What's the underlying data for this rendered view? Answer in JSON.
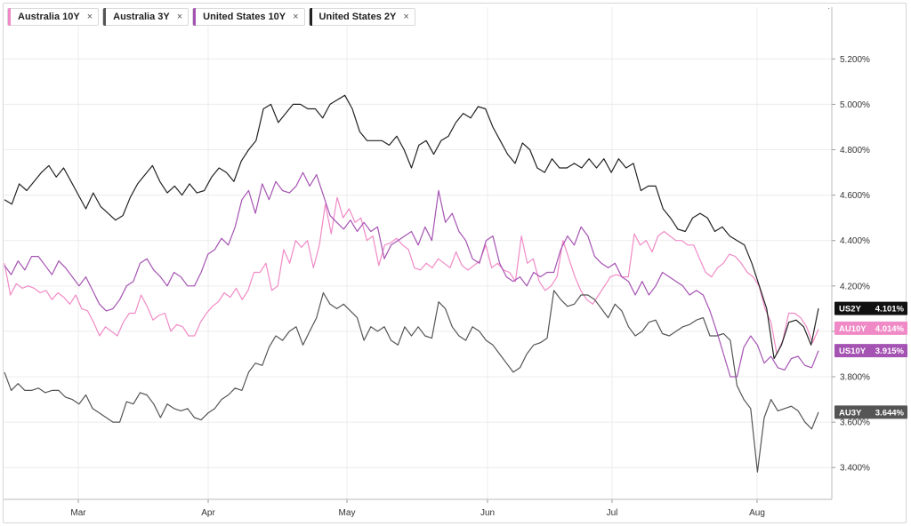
{
  "legend": [
    {
      "label": "Australia 10Y",
      "color": "#f08ac6",
      "close": "×"
    },
    {
      "label": "Australia 3Y",
      "color": "#555555",
      "close": "×"
    },
    {
      "label": "United States 10Y",
      "color": "#a553b2",
      "close": "×"
    },
    {
      "label": "United States 2Y",
      "color": "#222222",
      "close": "×"
    }
  ],
  "corner_mark": "·",
  "chart_data": {
    "type": "line",
    "x_labels": [
      "Mar",
      "Apr",
      "May",
      "Jun",
      "Jul",
      "Aug"
    ],
    "y_ticks": [
      "3.400%",
      "3.600%",
      "3.800%",
      "4.000%",
      "4.200%",
      "4.400%",
      "4.600%",
      "4.800%",
      "5.000%",
      "5.200%"
    ],
    "y_tick_values": [
      3.4,
      3.6,
      3.8,
      4.0,
      4.2,
      4.4,
      4.6,
      4.8,
      5.0,
      5.2
    ],
    "ylim": [
      3.26,
      5.35
    ],
    "grid": true,
    "legend_position": "top-left",
    "series": [
      {
        "name": "Australia 10Y",
        "badge": "AU10Y",
        "last_label": "4.014%",
        "color": "#f08ac6",
        "badge_color": "#f08ac6",
        "last": 4.014,
        "values": [
          4.3,
          4.16,
          4.21,
          4.19,
          4.2,
          4.19,
          4.17,
          4.18,
          4.14,
          4.17,
          4.15,
          4.12,
          4.16,
          4.1,
          4.09,
          4.04,
          3.98,
          4.02,
          4.0,
          3.98,
          4.04,
          4.08,
          4.08,
          4.16,
          4.11,
          4.05,
          4.07,
          4.08,
          4.0,
          4.03,
          4.02,
          3.98,
          3.98,
          4.04,
          4.08,
          4.11,
          4.13,
          4.17,
          4.15,
          4.19,
          4.14,
          4.18,
          4.26,
          4.26,
          4.3,
          4.18,
          4.2,
          4.36,
          4.3,
          4.4,
          4.37,
          4.4,
          4.28,
          4.38,
          4.56,
          4.43,
          4.59,
          4.5,
          4.54,
          4.48,
          4.5,
          4.4,
          4.42,
          4.29,
          4.38,
          4.39,
          4.41,
          4.38,
          4.36,
          4.28,
          4.27,
          4.3,
          4.28,
          4.32,
          4.3,
          4.28,
          4.35,
          4.29,
          4.27,
          4.29,
          4.31,
          4.38,
          4.28,
          4.3,
          4.27,
          4.26,
          4.22,
          4.42,
          4.3,
          4.32,
          4.22,
          4.18,
          4.2,
          4.24,
          4.4,
          4.32,
          4.24,
          4.18,
          4.14,
          4.12,
          4.16,
          4.2,
          4.24,
          4.25,
          4.24,
          4.24,
          4.43,
          4.38,
          4.4,
          4.35,
          4.42,
          4.44,
          4.42,
          4.4,
          4.4,
          4.38,
          4.38,
          4.32,
          4.26,
          4.24,
          4.28,
          4.3,
          4.34,
          4.33,
          4.3,
          4.26,
          4.24,
          4.2,
          4.1,
          4.04,
          3.9,
          3.96,
          4.08,
          4.08,
          4.06,
          4.02,
          3.95,
          4.01
        ]
      },
      {
        "name": "Australia 3Y",
        "badge": "AU3Y",
        "last_label": "3.644%",
        "color": "#555555",
        "badge_color": "#555555",
        "last": 3.644,
        "values": [
          3.82,
          3.74,
          3.77,
          3.74,
          3.74,
          3.75,
          3.73,
          3.74,
          3.74,
          3.71,
          3.7,
          3.68,
          3.72,
          3.66,
          3.64,
          3.62,
          3.6,
          3.6,
          3.69,
          3.68,
          3.73,
          3.72,
          3.68,
          3.62,
          3.68,
          3.66,
          3.65,
          3.66,
          3.62,
          3.61,
          3.64,
          3.66,
          3.7,
          3.72,
          3.75,
          3.74,
          3.82,
          3.86,
          3.85,
          3.93,
          3.98,
          3.96,
          4.0,
          4.02,
          3.94,
          4.0,
          4.06,
          4.17,
          4.12,
          4.1,
          4.12,
          4.09,
          4.06,
          3.96,
          4.02,
          4.0,
          4.02,
          3.96,
          3.94,
          4.02,
          3.98,
          4.02,
          3.98,
          3.97,
          4.13,
          4.1,
          4.02,
          3.98,
          3.96,
          4.02,
          4.0,
          3.96,
          3.94,
          3.9,
          3.86,
          3.82,
          3.84,
          3.9,
          3.94,
          3.95,
          3.97,
          4.18,
          4.14,
          4.11,
          4.12,
          4.16,
          4.16,
          4.14,
          4.1,
          4.06,
          4.12,
          4.09,
          4.02,
          3.98,
          4.0,
          4.04,
          4.05,
          3.99,
          3.98,
          4.0,
          4.02,
          4.03,
          4.05,
          4.06,
          3.98,
          3.98,
          3.99,
          3.96,
          3.76,
          3.7,
          3.66,
          3.38,
          3.62,
          3.7,
          3.65,
          3.66,
          3.67,
          3.65,
          3.6,
          3.57,
          3.644
        ]
      },
      {
        "name": "United States 10Y",
        "badge": "US10Y",
        "last_label": "3.915%",
        "color": "#a553b2",
        "badge_color": "#a553b2",
        "last": 3.915,
        "values": [
          4.29,
          4.25,
          4.31,
          4.27,
          4.33,
          4.33,
          4.29,
          4.25,
          4.31,
          4.28,
          4.24,
          4.2,
          4.24,
          4.18,
          4.12,
          4.09,
          4.1,
          4.14,
          4.2,
          4.22,
          4.3,
          4.32,
          4.27,
          4.24,
          4.2,
          4.26,
          4.24,
          4.2,
          4.2,
          4.26,
          4.34,
          4.36,
          4.41,
          4.38,
          4.46,
          4.58,
          4.62,
          4.52,
          4.65,
          4.58,
          4.66,
          4.62,
          4.61,
          4.64,
          4.7,
          4.64,
          4.69,
          4.6,
          4.51,
          4.48,
          4.45,
          4.49,
          4.44,
          4.48,
          4.44,
          4.46,
          4.32,
          4.38,
          4.4,
          4.42,
          4.44,
          4.38,
          4.46,
          4.4,
          4.62,
          4.48,
          4.52,
          4.44,
          4.4,
          4.32,
          4.3,
          4.4,
          4.42,
          4.3,
          4.24,
          4.22,
          4.24,
          4.2,
          4.26,
          4.24,
          4.26,
          4.26,
          4.36,
          4.42,
          4.38,
          4.46,
          4.42,
          4.33,
          4.3,
          4.28,
          4.3,
          4.24,
          4.22,
          4.16,
          4.22,
          4.16,
          4.2,
          4.26,
          4.24,
          4.22,
          4.2,
          4.16,
          4.18,
          4.16,
          4.09,
          4.0,
          3.9,
          3.8,
          3.8,
          3.93,
          3.98,
          3.94,
          3.86,
          3.89,
          3.84,
          3.83,
          3.88,
          3.89,
          3.85,
          3.84,
          3.915
        ]
      },
      {
        "name": "United States 2Y",
        "badge": "US2Y",
        "last_label": "4.101%",
        "color": "#222222",
        "badge_color": "#111111",
        "last": 4.101,
        "values": [
          4.58,
          4.56,
          4.65,
          4.62,
          4.66,
          4.7,
          4.73,
          4.68,
          4.72,
          4.66,
          4.6,
          4.54,
          4.61,
          4.55,
          4.52,
          4.49,
          4.51,
          4.59,
          4.65,
          4.69,
          4.73,
          4.66,
          4.61,
          4.64,
          4.6,
          4.65,
          4.61,
          4.62,
          4.68,
          4.72,
          4.7,
          4.66,
          4.75,
          4.8,
          4.84,
          4.98,
          5.0,
          4.92,
          4.96,
          5.0,
          5.0,
          4.98,
          4.98,
          4.94,
          5.0,
          5.02,
          5.04,
          4.98,
          4.88,
          4.84,
          4.84,
          4.84,
          4.82,
          4.86,
          4.8,
          4.72,
          4.82,
          4.84,
          4.78,
          4.84,
          4.86,
          4.92,
          4.96,
          4.94,
          4.99,
          4.98,
          4.9,
          4.84,
          4.78,
          4.74,
          4.83,
          4.8,
          4.72,
          4.7,
          4.76,
          4.72,
          4.72,
          4.74,
          4.72,
          4.76,
          4.72,
          4.76,
          4.7,
          4.76,
          4.72,
          4.74,
          4.62,
          4.64,
          4.64,
          4.54,
          4.5,
          4.45,
          4.44,
          4.5,
          4.52,
          4.5,
          4.44,
          4.46,
          4.42,
          4.4,
          4.38,
          4.3,
          4.2,
          4.1,
          3.88,
          3.94,
          4.04,
          4.05,
          4.02,
          3.94,
          4.101
        ]
      }
    ]
  }
}
